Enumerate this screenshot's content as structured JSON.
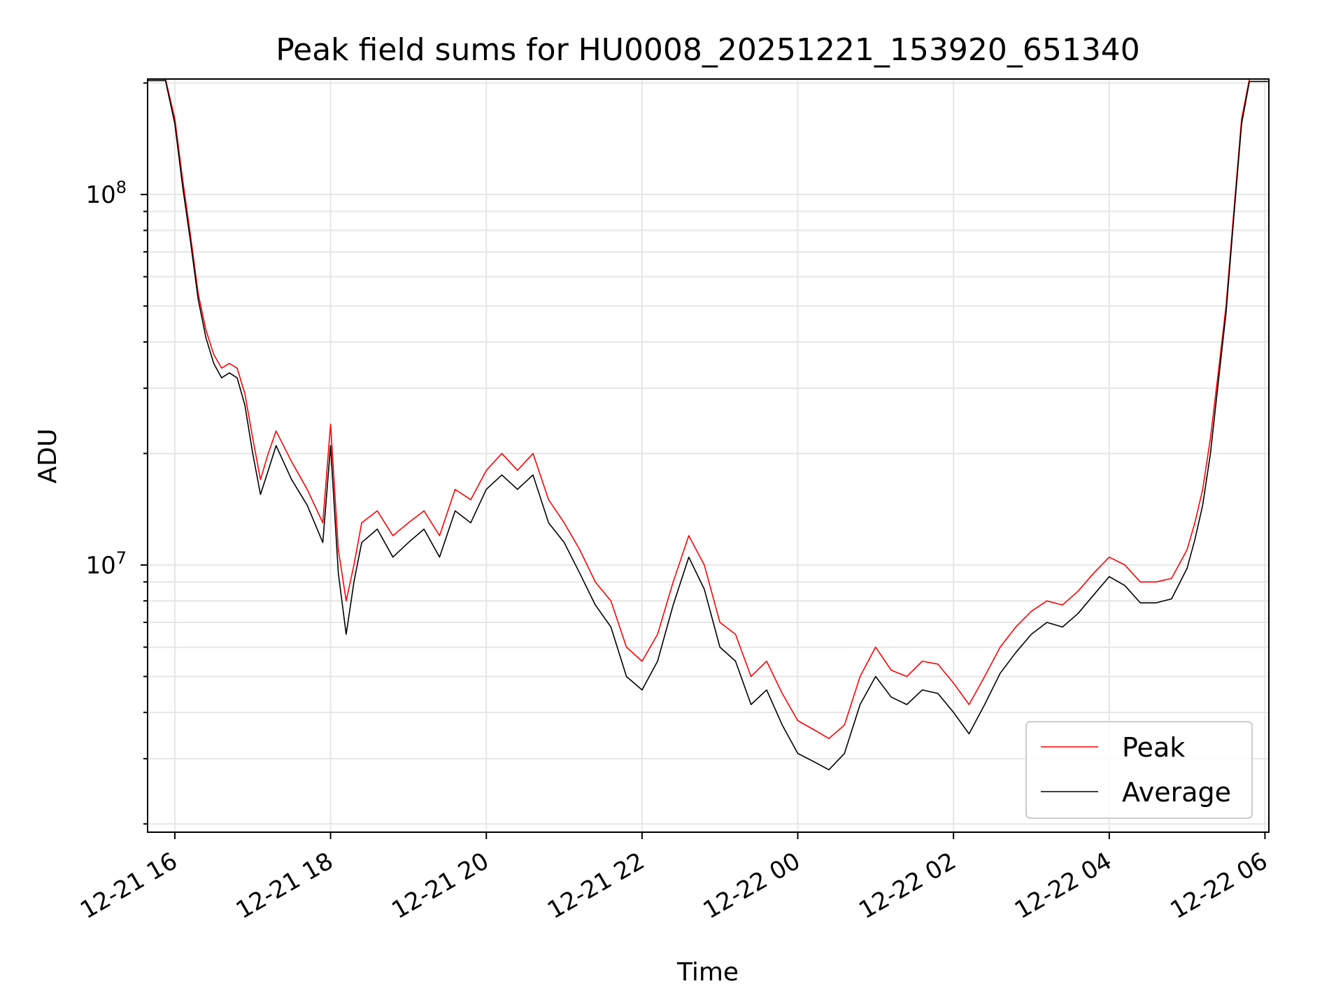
{
  "chart_data": {
    "type": "line",
    "title": "Peak field sums for HU0008_20251221_153920_651340",
    "xlabel": "Time",
    "ylabel": "ADU",
    "yscale": "log",
    "ylim": [
      1900000,
      205000000
    ],
    "xlim_hours_from_2025-12-21T16:00": [
      -0.35,
      14.05
    ],
    "grid": true,
    "legend_position": "lower-right",
    "x_ticks": [
      {
        "label": "12-21 16",
        "hour": 0
      },
      {
        "label": "12-21 18",
        "hour": 2
      },
      {
        "label": "12-21 20",
        "hour": 4
      },
      {
        "label": "12-21 22",
        "hour": 6
      },
      {
        "label": "12-22 00",
        "hour": 8
      },
      {
        "label": "12-22 02",
        "hour": 10
      },
      {
        "label": "12-22 04",
        "hour": 12
      },
      {
        "label": "12-22 06",
        "hour": 14
      }
    ],
    "y_ticks": [
      {
        "exponent": "8",
        "value": 100000000
      },
      {
        "exponent": "7",
        "value": 10000000
      }
    ],
    "series": [
      {
        "name": "Peak",
        "color": "#ff0000",
        "x_hours": [
          -0.35,
          -0.12,
          0.0,
          0.1,
          0.2,
          0.3,
          0.4,
          0.5,
          0.6,
          0.7,
          0.8,
          0.9,
          1.0,
          1.1,
          1.2,
          1.3,
          1.5,
          1.7,
          1.9,
          2.0,
          2.1,
          2.2,
          2.3,
          2.4,
          2.6,
          2.8,
          3.0,
          3.2,
          3.4,
          3.6,
          3.8,
          4.0,
          4.2,
          4.4,
          4.6,
          4.8,
          5.0,
          5.2,
          5.4,
          5.6,
          5.8,
          6.0,
          6.2,
          6.4,
          6.6,
          6.8,
          7.0,
          7.2,
          7.4,
          7.6,
          7.8,
          8.0,
          8.2,
          8.4,
          8.6,
          8.8,
          9.0,
          9.2,
          9.4,
          9.6,
          9.8,
          10.0,
          10.2,
          10.4,
          10.6,
          10.8,
          11.0,
          11.2,
          11.4,
          11.6,
          11.8,
          12.0,
          12.2,
          12.4,
          12.6,
          12.8,
          13.0,
          13.1,
          13.2,
          13.3,
          13.4,
          13.5,
          13.6,
          13.7,
          13.8,
          14.05
        ],
        "y_adu": [
          205000000,
          205000000,
          160000000,
          110000000,
          78000000,
          54000000,
          43000000,
          37000000,
          34000000,
          35000000,
          34000000,
          29000000,
          22000000,
          17000000,
          20000000,
          23000000,
          19000000,
          16000000,
          13000000,
          24000000,
          11000000,
          8000000,
          10000000,
          13000000,
          14000000,
          12000000,
          13000000,
          14000000,
          12000000,
          16000000,
          15000000,
          18000000,
          20000000,
          18000000,
          20000000,
          15000000,
          13000000,
          11000000,
          9000000,
          8000000,
          6000000,
          5500000,
          6500000,
          9000000,
          12000000,
          10000000,
          7000000,
          6500000,
          5000000,
          5500000,
          4500000,
          3800000,
          3600000,
          3400000,
          3700000,
          5000000,
          6000000,
          5200000,
          5000000,
          5500000,
          5400000,
          4800000,
          4200000,
          5000000,
          6000000,
          6800000,
          7500000,
          8000000,
          7800000,
          8500000,
          9500000,
          10500000,
          10000000,
          9000000,
          9000000,
          9200000,
          11000000,
          13000000,
          16000000,
          22000000,
          33000000,
          50000000,
          90000000,
          160000000,
          205000000,
          205000000
        ]
      },
      {
        "name": "Average",
        "color": "#000000",
        "x_hours": [
          -0.35,
          -0.12,
          0.0,
          0.1,
          0.2,
          0.3,
          0.4,
          0.5,
          0.6,
          0.7,
          0.8,
          0.9,
          1.0,
          1.1,
          1.2,
          1.3,
          1.5,
          1.7,
          1.9,
          2.0,
          2.1,
          2.2,
          2.3,
          2.4,
          2.6,
          2.8,
          3.0,
          3.2,
          3.4,
          3.6,
          3.8,
          4.0,
          4.2,
          4.4,
          4.6,
          4.8,
          5.0,
          5.2,
          5.4,
          5.6,
          5.8,
          6.0,
          6.2,
          6.4,
          6.6,
          6.8,
          7.0,
          7.2,
          7.4,
          7.6,
          7.8,
          8.0,
          8.2,
          8.4,
          8.6,
          8.8,
          9.0,
          9.2,
          9.4,
          9.6,
          9.8,
          10.0,
          10.2,
          10.4,
          10.6,
          10.8,
          11.0,
          11.2,
          11.4,
          11.6,
          11.8,
          12.0,
          12.2,
          12.4,
          12.6,
          12.8,
          13.0,
          13.1,
          13.2,
          13.3,
          13.4,
          13.5,
          13.6,
          13.7,
          13.8,
          14.05
        ],
        "y_adu": [
          203000000,
          203000000,
          155000000,
          105000000,
          75000000,
          52000000,
          41000000,
          35000000,
          32000000,
          33000000,
          32000000,
          27000000,
          20000000,
          15500000,
          18000000,
          21000000,
          17000000,
          14500000,
          11500000,
          21000000,
          9500000,
          6500000,
          9000000,
          11500000,
          12500000,
          10500000,
          11500000,
          12500000,
          10500000,
          14000000,
          13000000,
          16000000,
          17500000,
          16000000,
          17500000,
          13000000,
          11500000,
          9500000,
          7800000,
          6800000,
          5000000,
          4600000,
          5500000,
          7800000,
          10500000,
          8600000,
          6000000,
          5500000,
          4200000,
          4600000,
          3700000,
          3100000,
          2950000,
          2800000,
          3100000,
          4200000,
          5000000,
          4400000,
          4200000,
          4600000,
          4500000,
          4000000,
          3500000,
          4200000,
          5100000,
          5800000,
          6500000,
          7000000,
          6800000,
          7400000,
          8300000,
          9300000,
          8800000,
          7900000,
          7900000,
          8100000,
          9800000,
          11700000,
          14500000,
          20000000,
          31000000,
          48000000,
          87000000,
          155000000,
          202000000,
          202000000
        ]
      }
    ]
  }
}
